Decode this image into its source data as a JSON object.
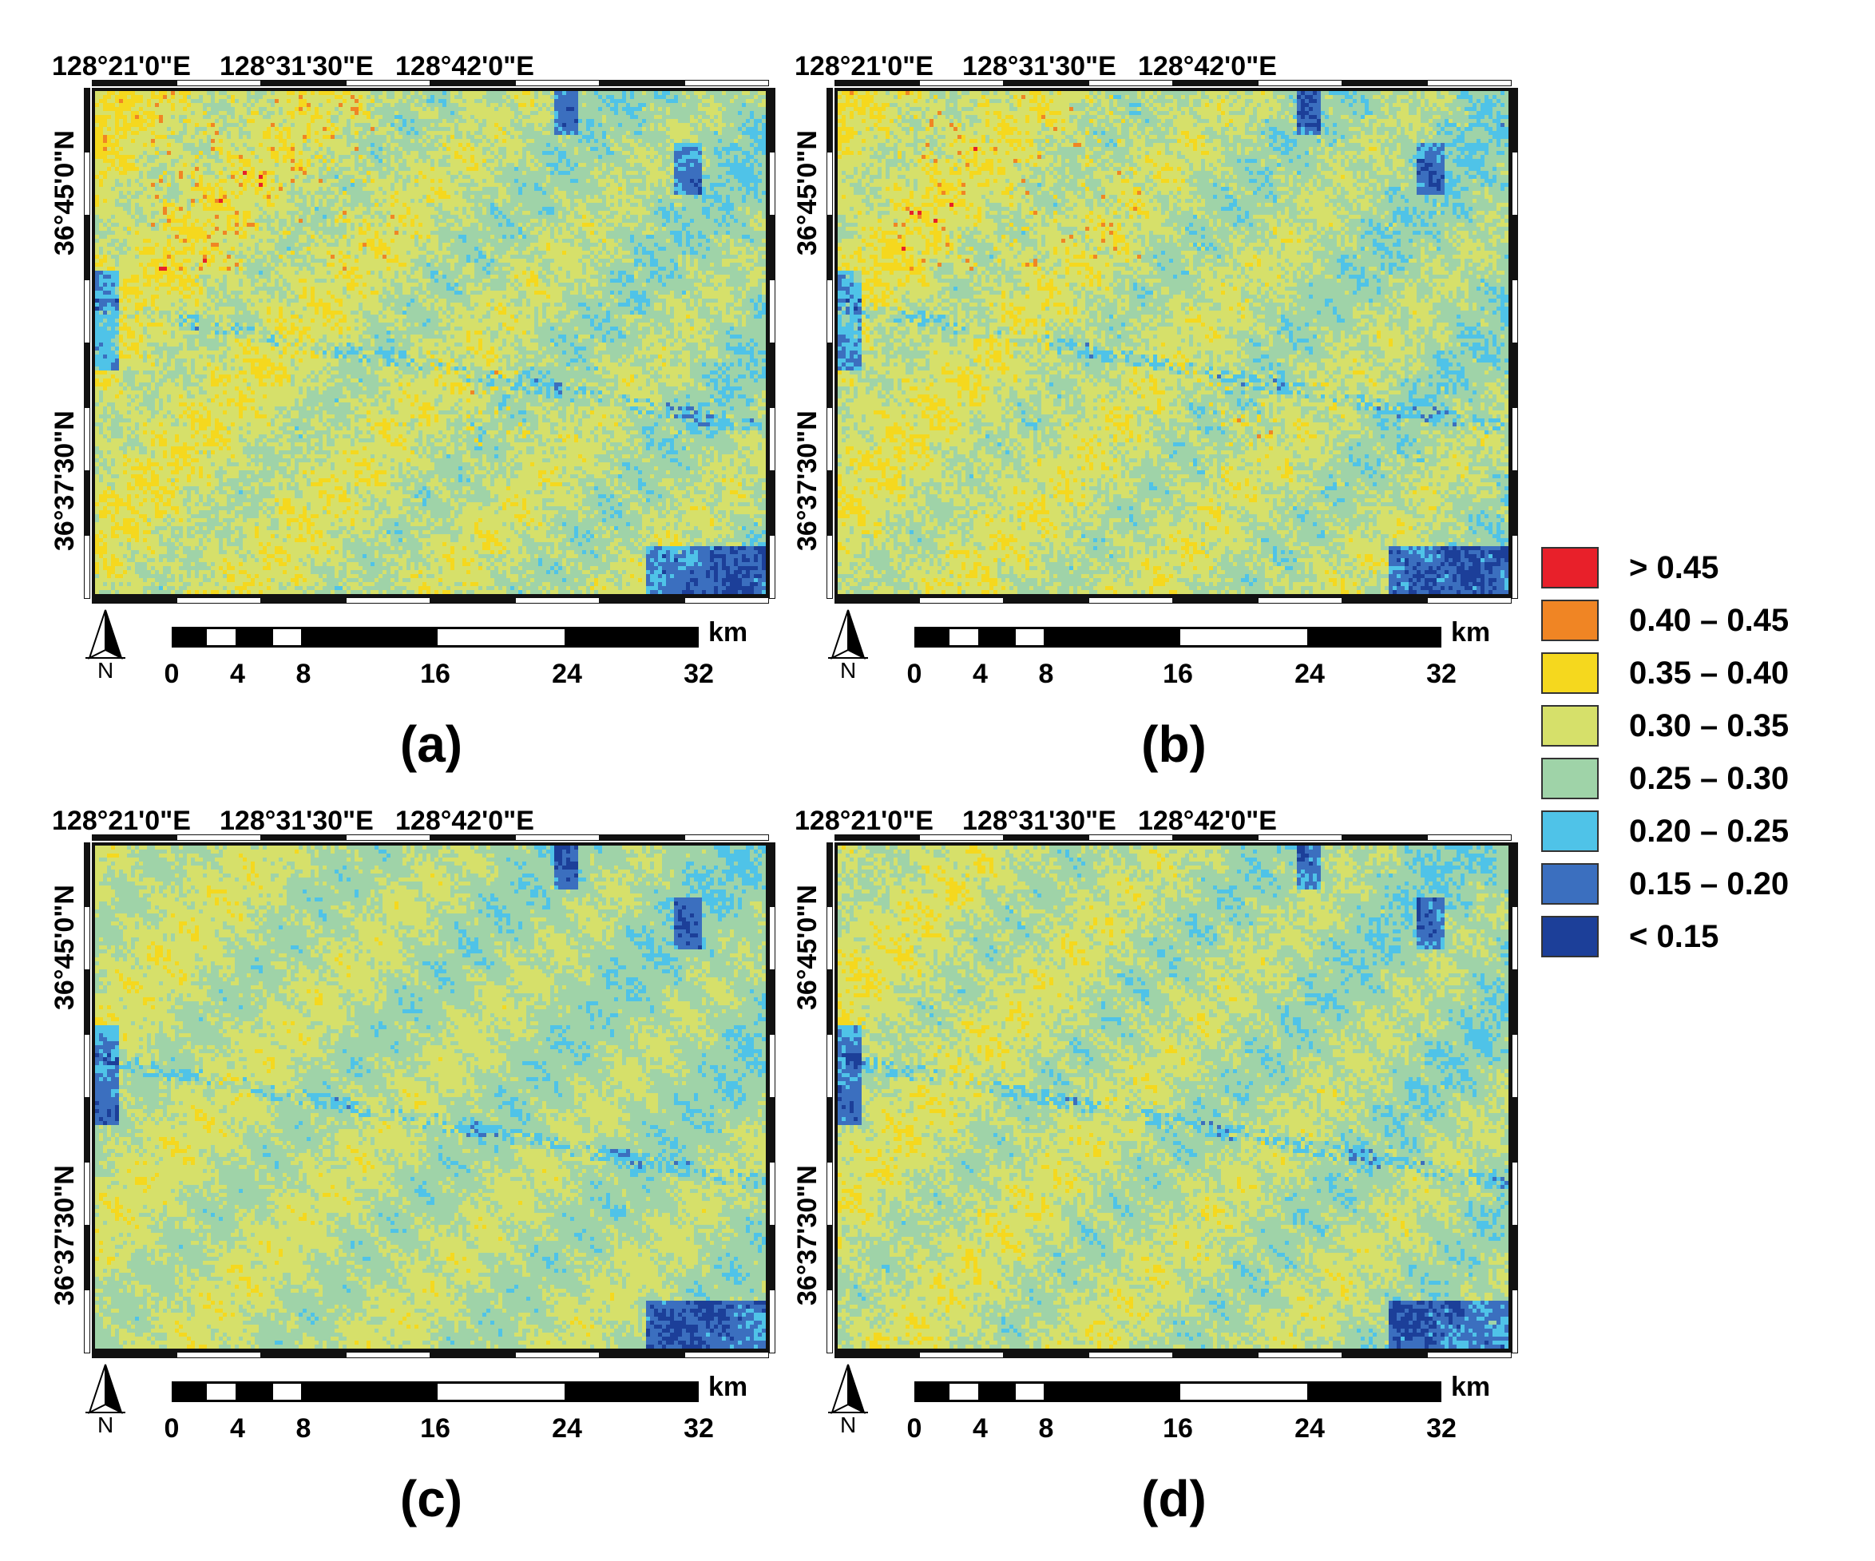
{
  "panels": [
    {
      "id": "a",
      "letter": "(a)",
      "variant": 0
    },
    {
      "id": "b",
      "letter": "(b)",
      "variant": 1
    },
    {
      "id": "c",
      "letter": "(c)",
      "variant": 2
    },
    {
      "id": "d",
      "letter": "(d)",
      "variant": 3
    }
  ],
  "axes": {
    "lon_labels": [
      "128°21'0\"E",
      "128°31'30\"E",
      "128°42'0\"E"
    ],
    "lat_labels": [
      "36°45'0\"N",
      "36°37'30\"N"
    ]
  },
  "scalebar": {
    "ticks": [
      "0",
      "4",
      "8",
      "16",
      "24",
      "32"
    ],
    "unit": "km"
  },
  "north_arrow": {
    "label": "N",
    "icon": "north-arrow-icon"
  },
  "legend": [
    {
      "label": "> 0.45",
      "color": "#e8202a"
    },
    {
      "label": "0.40 – 0.45",
      "color": "#f08524"
    },
    {
      "label": "0.35 – 0.40",
      "color": "#f5d81e"
    },
    {
      "label": "0.30 – 0.35",
      "color": "#d6e06a"
    },
    {
      "label": "0.25 – 0.30",
      "color": "#9fd3a8"
    },
    {
      "label": "0.20 – 0.25",
      "color": "#4fc3e8"
    },
    {
      "label": "0.15 – 0.20",
      "color": "#3b6fbf"
    },
    {
      "label": "< 0.15",
      "color": "#1c3f99"
    }
  ]
}
